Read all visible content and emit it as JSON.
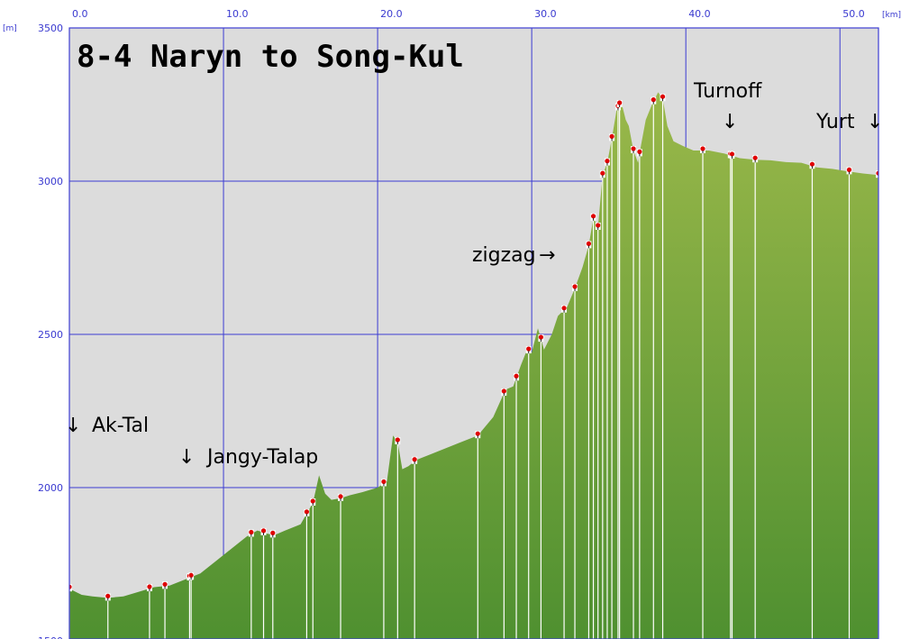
{
  "chart_data": {
    "type": "area",
    "title": "8-4 Naryn to Song-Kul",
    "xunit": "[km]",
    "yunit": "[m]",
    "xlim": [
      0,
      52.5
    ],
    "ylim": [
      1500,
      3500
    ],
    "xticks": [
      "0.0",
      "10.0",
      "20.0",
      "30.0",
      "40.0",
      "50.0"
    ],
    "yticks": [
      "3500",
      "3000",
      "2500",
      "2000",
      "1500"
    ],
    "grid": true,
    "colors": {
      "fill_top": "#9ab84a",
      "fill_bottom": "#4f9030",
      "plot_bg": "#dcdcdc",
      "grid": "#3c3cd2",
      "marker": "#e00000"
    },
    "profile": {
      "x": [
        0,
        0.8,
        1.5,
        2.5,
        3.5,
        4.5,
        5.5,
        6.5,
        7.5,
        8.5,
        9.5,
        10.5,
        11.5,
        12.2,
        12.8,
        13.3,
        14,
        15,
        15.8,
        16.2,
        16.6,
        17,
        17.6,
        18.2,
        19,
        20,
        20.6,
        21,
        21.3,
        21.6,
        22,
        22.5,
        23.5,
        25,
        26.5,
        27.5,
        28.3,
        28.8,
        29.3,
        29.7,
        30,
        30.4,
        30.8,
        31.3,
        31.7,
        32.3,
        32.8,
        33.3,
        33.7,
        34,
        34.3,
        34.6,
        34.9,
        35.2,
        35.5,
        35.8,
        36.1,
        36.3,
        36.6,
        36.9,
        37.1,
        37.4,
        37.8,
        38.2,
        38.5,
        38.8,
        39.2,
        39.8,
        40.5,
        41.5,
        42.5,
        43.5,
        44.5,
        45.5,
        46.5,
        47.5,
        48.5,
        49.5,
        50.5,
        51.5,
        52.5
      ],
      "y": [
        1670,
        1650,
        1645,
        1640,
        1645,
        1660,
        1675,
        1680,
        1700,
        1720,
        1760,
        1800,
        1840,
        1860,
        1850,
        1845,
        1860,
        1880,
        1950,
        2040,
        1980,
        1960,
        1965,
        1975,
        1985,
        2000,
        2020,
        2170,
        2150,
        2060,
        2070,
        2090,
        2110,
        2140,
        2170,
        2230,
        2320,
        2330,
        2400,
        2450,
        2440,
        2520,
        2450,
        2500,
        2560,
        2590,
        2650,
        2720,
        2790,
        2880,
        2850,
        3020,
        3060,
        3140,
        3230,
        3260,
        3200,
        3180,
        3100,
        3060,
        3120,
        3200,
        3250,
        3290,
        3270,
        3180,
        3130,
        3115,
        3100,
        3100,
        3090,
        3075,
        3070,
        3068,
        3062,
        3060,
        3045,
        3040,
        3032,
        3025,
        3020
      ]
    },
    "waypoints_x": [
      0,
      2.5,
      5.2,
      6.2,
      7.8,
      7.9,
      11.8,
      12.6,
      13.2,
      15.4,
      15.8,
      17.6,
      20.4,
      21.3,
      22.4,
      26.5,
      28.2,
      29,
      29.8,
      30.6,
      32.1,
      32.8,
      33.7,
      34.0,
      34.3,
      34.6,
      34.9,
      35.2,
      35.6,
      35.7,
      36.6,
      37.0,
      37.9,
      38.5,
      41.1,
      42.9,
      43.0,
      44.5,
      48.2,
      50.6,
      52.5
    ],
    "annotations": [
      "Ak-Tal",
      "Jangy-Talap",
      "zigzag",
      "Turnoff",
      "Yurt"
    ]
  }
}
